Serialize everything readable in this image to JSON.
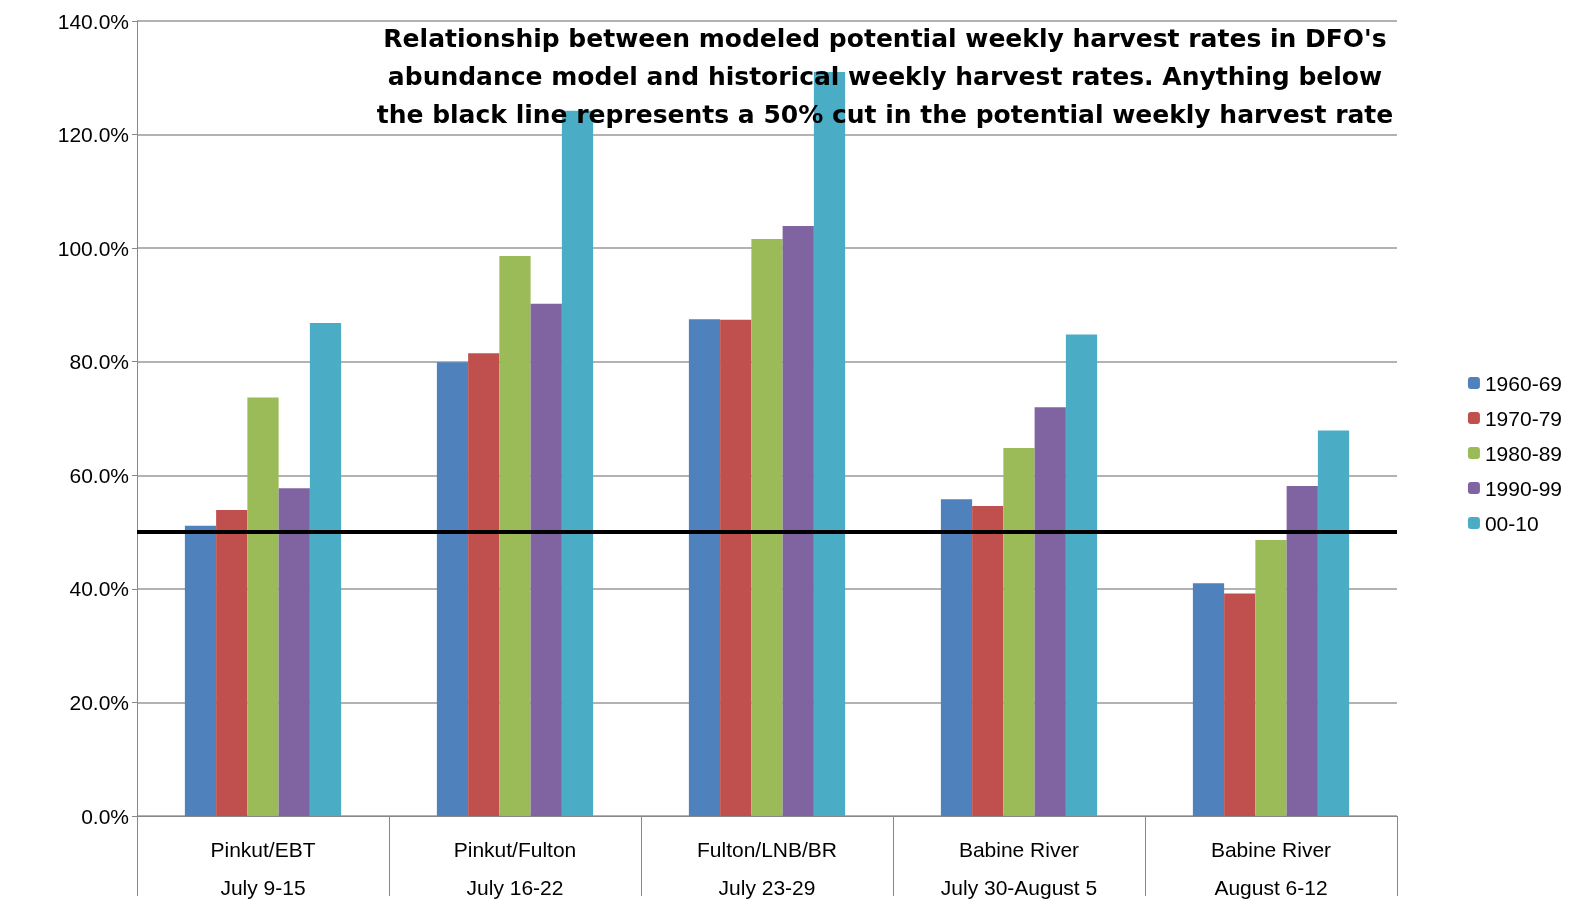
{
  "chart_data": {
    "type": "bar",
    "title": "Relationship between modeled potential weekly harvest rates in DFO's\nabundance model and historical weekly harvest rates. Anything below\nthe black line represents a 50% cut in the potential weekly harvest rate",
    "categories": [
      "Pinkut/EBT\nJuly 9-15",
      "Pinkut/Fulton\nJuly 16-22",
      "Fulton/LNB/BR\nJuly 23-29",
      "Babine River\nJuly 30-August 5",
      "Babine River\nAugust 6-12"
    ],
    "series": [
      {
        "name": "1960-69",
        "color": "#4f81bd",
        "values": [
          51.1,
          79.9,
          87.5,
          55.8,
          41.0
        ]
      },
      {
        "name": "1970-79",
        "color": "#c0504d",
        "values": [
          53.9,
          81.5,
          87.4,
          54.6,
          39.2
        ]
      },
      {
        "name": "1980-89",
        "color": "#9bbb59",
        "values": [
          73.7,
          98.6,
          101.6,
          64.8,
          48.6
        ]
      },
      {
        "name": "1990-99",
        "color": "#8064a2",
        "values": [
          57.7,
          90.2,
          103.9,
          72.0,
          58.1
        ]
      },
      {
        "name": "00-10",
        "color": "#4bacc6",
        "values": [
          86.8,
          124.2,
          131.0,
          84.8,
          67.9
        ]
      }
    ],
    "ylim": [
      0,
      140
    ],
    "yticks": [
      {
        "value": 0,
        "label": "0.0%"
      },
      {
        "value": 20,
        "label": "20.0%"
      },
      {
        "value": 40,
        "label": "40.0%"
      },
      {
        "value": 60,
        "label": "60.0%"
      },
      {
        "value": 80,
        "label": "80.0%"
      },
      {
        "value": 100,
        "label": "100.0%"
      },
      {
        "value": 120,
        "label": "120.0%"
      },
      {
        "value": 140,
        "label": "140.0%"
      }
    ],
    "ref_lines": [
      {
        "axis": "y",
        "value": 50,
        "color": "#000000"
      }
    ],
    "grid": "y",
    "legend": "right"
  }
}
